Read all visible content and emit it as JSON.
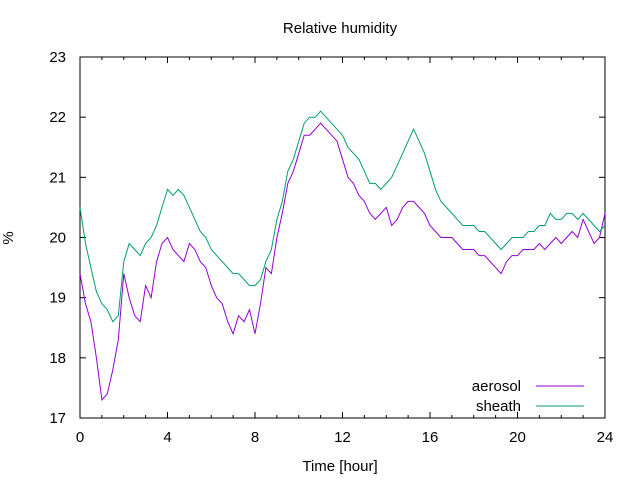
{
  "chart_data": {
    "type": "line",
    "title": "Relative humidity",
    "xlabel": "Time [hour]",
    "ylabel": "%",
    "xlim": [
      0,
      24
    ],
    "ylim": [
      17,
      23
    ],
    "x_ticks": [
      "0",
      "4",
      "8",
      "12",
      "16",
      "20",
      "24"
    ],
    "x_tick_values": [
      0,
      4,
      8,
      12,
      16,
      20,
      24
    ],
    "y_ticks": [
      "17",
      "18",
      "19",
      "20",
      "21",
      "22",
      "23"
    ],
    "y_tick_values": [
      17,
      18,
      19,
      20,
      21,
      22,
      23
    ],
    "grid": false,
    "legend_position": "bottom-right",
    "series": [
      {
        "name": "aerosol",
        "color": "#9400d3",
        "x": [
          0,
          0.25,
          0.5,
          0.75,
          1.0,
          1.25,
          1.5,
          1.75,
          2.0,
          2.25,
          2.5,
          2.75,
          3.0,
          3.25,
          3.5,
          3.75,
          4.0,
          4.25,
          4.5,
          4.75,
          5.0,
          5.25,
          5.5,
          5.75,
          6.0,
          6.25,
          6.5,
          6.75,
          7.0,
          7.25,
          7.5,
          7.75,
          8.0,
          8.25,
          8.5,
          8.75,
          9.0,
          9.25,
          9.5,
          9.75,
          10.0,
          10.25,
          10.5,
          10.75,
          11.0,
          11.25,
          11.5,
          11.75,
          12.0,
          12.25,
          12.5,
          12.75,
          13.0,
          13.25,
          13.5,
          13.75,
          14.0,
          14.25,
          14.5,
          14.75,
          15.0,
          15.25,
          15.5,
          15.75,
          16.0,
          16.25,
          16.5,
          16.75,
          17.0,
          17.25,
          17.5,
          17.75,
          18.0,
          18.25,
          18.5,
          18.75,
          19.0,
          19.25,
          19.5,
          19.75,
          20.0,
          20.25,
          20.5,
          20.75,
          21.0,
          21.25,
          21.5,
          21.75,
          22.0,
          22.25,
          22.5,
          22.75,
          23.0,
          23.25,
          23.5,
          23.75,
          24.0
        ],
        "values": [
          19.4,
          18.9,
          18.6,
          18.0,
          17.3,
          17.4,
          17.8,
          18.3,
          19.4,
          19.0,
          18.7,
          18.6,
          19.2,
          19.0,
          19.6,
          19.9,
          20.0,
          19.8,
          19.7,
          19.6,
          19.9,
          19.8,
          19.6,
          19.5,
          19.2,
          19.0,
          18.9,
          18.6,
          18.4,
          18.7,
          18.6,
          18.8,
          18.4,
          18.9,
          19.5,
          19.4,
          20.0,
          20.4,
          20.9,
          21.1,
          21.4,
          21.7,
          21.7,
          21.8,
          21.9,
          21.8,
          21.7,
          21.6,
          21.3,
          21.0,
          20.9,
          20.7,
          20.6,
          20.4,
          20.3,
          20.4,
          20.5,
          20.2,
          20.3,
          20.5,
          20.6,
          20.6,
          20.5,
          20.4,
          20.2,
          20.1,
          20.0,
          20.0,
          20.0,
          19.9,
          19.8,
          19.8,
          19.8,
          19.7,
          19.7,
          19.6,
          19.5,
          19.4,
          19.6,
          19.7,
          19.7,
          19.8,
          19.8,
          19.8,
          19.9,
          19.8,
          19.9,
          20.0,
          19.9,
          20.0,
          20.1,
          20.0,
          20.3,
          20.1,
          19.9,
          20.0,
          20.4
        ]
      },
      {
        "name": "sheath",
        "color": "#009e73",
        "x": [
          0,
          0.25,
          0.5,
          0.75,
          1.0,
          1.25,
          1.5,
          1.75,
          2.0,
          2.25,
          2.5,
          2.75,
          3.0,
          3.25,
          3.5,
          3.75,
          4.0,
          4.25,
          4.5,
          4.75,
          5.0,
          5.25,
          5.5,
          5.75,
          6.0,
          6.25,
          6.5,
          6.75,
          7.0,
          7.25,
          7.5,
          7.75,
          8.0,
          8.25,
          8.5,
          8.75,
          9.0,
          9.25,
          9.5,
          9.75,
          10.0,
          10.25,
          10.5,
          10.75,
          11.0,
          11.25,
          11.5,
          11.75,
          12.0,
          12.25,
          12.5,
          12.75,
          13.0,
          13.25,
          13.5,
          13.75,
          14.0,
          14.25,
          14.5,
          14.75,
          15.0,
          15.25,
          15.5,
          15.75,
          16.0,
          16.25,
          16.5,
          16.75,
          17.0,
          17.25,
          17.5,
          17.75,
          18.0,
          18.25,
          18.5,
          18.75,
          19.0,
          19.25,
          19.5,
          19.75,
          20.0,
          20.25,
          20.5,
          20.75,
          21.0,
          21.25,
          21.5,
          21.75,
          22.0,
          22.25,
          22.5,
          22.75,
          23.0,
          23.25,
          23.5,
          23.75,
          24.0
        ],
        "values": [
          20.5,
          19.9,
          19.5,
          19.1,
          18.9,
          18.8,
          18.6,
          18.7,
          19.6,
          19.9,
          19.8,
          19.7,
          19.9,
          20.0,
          20.2,
          20.5,
          20.8,
          20.7,
          20.8,
          20.7,
          20.5,
          20.3,
          20.1,
          20.0,
          19.8,
          19.7,
          19.6,
          19.5,
          19.4,
          19.4,
          19.3,
          19.2,
          19.2,
          19.3,
          19.6,
          19.8,
          20.3,
          20.6,
          21.1,
          21.3,
          21.6,
          21.9,
          22.0,
          22.0,
          22.1,
          22.0,
          21.9,
          21.8,
          21.7,
          21.5,
          21.4,
          21.3,
          21.1,
          20.9,
          20.9,
          20.8,
          20.9,
          21.0,
          21.2,
          21.4,
          21.6,
          21.8,
          21.6,
          21.4,
          21.1,
          20.8,
          20.6,
          20.5,
          20.4,
          20.3,
          20.2,
          20.2,
          20.2,
          20.1,
          20.1,
          20.0,
          19.9,
          19.8,
          19.9,
          20.0,
          20.0,
          20.0,
          20.1,
          20.1,
          20.2,
          20.2,
          20.4,
          20.3,
          20.3,
          20.4,
          20.4,
          20.3,
          20.4,
          20.3,
          20.2,
          20.1,
          20.2
        ]
      }
    ]
  }
}
